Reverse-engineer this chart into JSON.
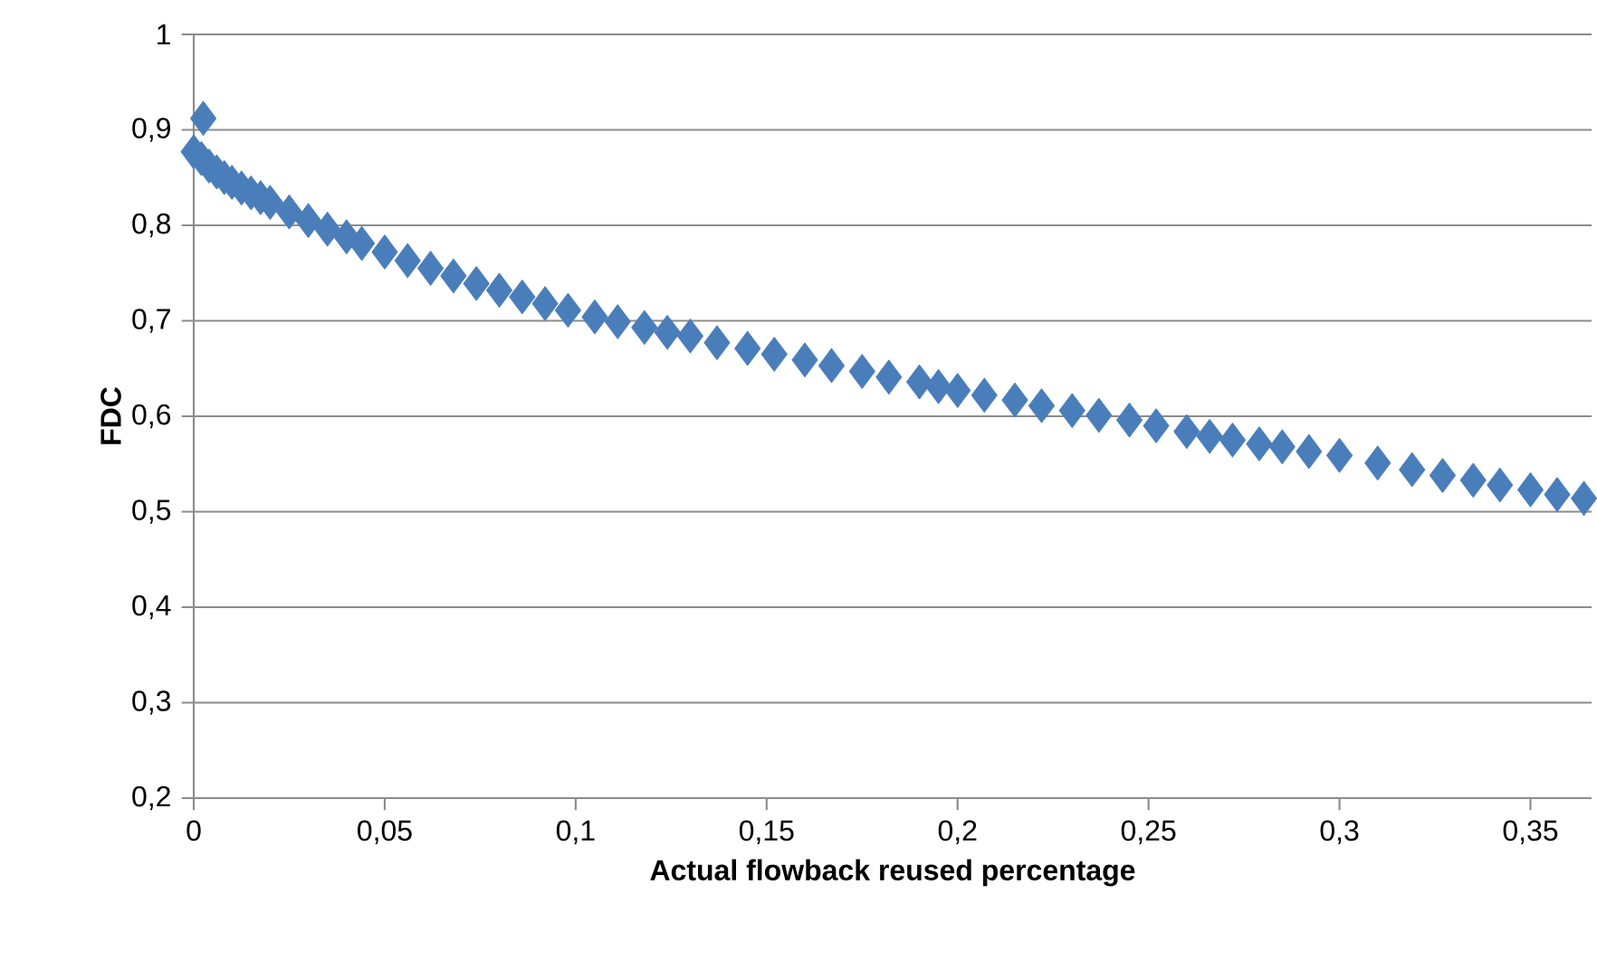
{
  "chart_data": {
    "type": "scatter",
    "xlabel": "Actual flowback reused percentage",
    "ylabel": "FDC",
    "xlim": [
      0,
      0.366
    ],
    "ylim": [
      0.2,
      1
    ],
    "xticks": [
      {
        "value": 0,
        "label": "0"
      },
      {
        "value": 0.05,
        "label": "0,05"
      },
      {
        "value": 0.1,
        "label": "0,1"
      },
      {
        "value": 0.15,
        "label": "0,15"
      },
      {
        "value": 0.2,
        "label": "0,2"
      },
      {
        "value": 0.25,
        "label": "0,25"
      },
      {
        "value": 0.3,
        "label": "0,3"
      },
      {
        "value": 0.35,
        "label": "0,35"
      }
    ],
    "yticks": [
      {
        "value": 0.2,
        "label": "0,2"
      },
      {
        "value": 0.3,
        "label": "0,3"
      },
      {
        "value": 0.4,
        "label": "0,4"
      },
      {
        "value": 0.5,
        "label": "0,5"
      },
      {
        "value": 0.6,
        "label": "0,6"
      },
      {
        "value": 0.7,
        "label": "0,7"
      },
      {
        "value": 0.8,
        "label": "0,8"
      },
      {
        "value": 0.9,
        "label": "0,9"
      },
      {
        "value": 1,
        "label": "1"
      }
    ],
    "grid": "y",
    "marker": "diamond",
    "series": [
      {
        "color": "#4a7ebb",
        "x": [
          0.0025,
          0,
          0.002,
          0.004,
          0.006,
          0.008,
          0.01,
          0.0125,
          0.015,
          0.0175,
          0.02,
          0.025,
          0.03,
          0.035,
          0.04,
          0.044,
          0.05,
          0.056,
          0.062,
          0.068,
          0.074,
          0.08,
          0.086,
          0.092,
          0.098,
          0.105,
          0.111,
          0.118,
          0.124,
          0.13,
          0.137,
          0.145,
          0.152,
          0.16,
          0.167,
          0.175,
          0.182,
          0.19,
          0.195,
          0.2,
          0.207,
          0.215,
          0.222,
          0.23,
          0.237,
          0.245,
          0.252,
          0.26,
          0.266,
          0.272,
          0.279,
          0.285,
          0.292,
          0.3,
          0.31,
          0.319,
          0.327,
          0.335,
          0.342,
          0.35,
          0.357,
          0.364
        ],
        "values": [
          0.912,
          0.877,
          0.87,
          0.862,
          0.856,
          0.85,
          0.845,
          0.839,
          0.834,
          0.829,
          0.824,
          0.814,
          0.805,
          0.796,
          0.788,
          0.781,
          0.772,
          0.763,
          0.755,
          0.747,
          0.739,
          0.732,
          0.725,
          0.718,
          0.711,
          0.704,
          0.699,
          0.693,
          0.688,
          0.684,
          0.677,
          0.671,
          0.665,
          0.659,
          0.653,
          0.647,
          0.641,
          0.636,
          0.631,
          0.627,
          0.622,
          0.617,
          0.611,
          0.606,
          0.601,
          0.596,
          0.59,
          0.584,
          0.579,
          0.575,
          0.571,
          0.568,
          0.563,
          0.559,
          0.551,
          0.544,
          0.538,
          0.533,
          0.528,
          0.523,
          0.518,
          0.514
        ]
      }
    ]
  }
}
